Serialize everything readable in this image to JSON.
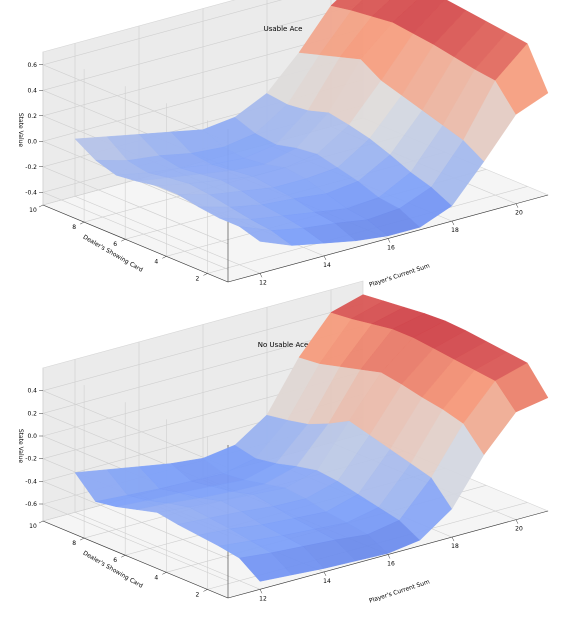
{
  "chart_data": [
    {
      "type": "surface3d",
      "title": "Usable Ace",
      "xlabel": "Player's Current Sum",
      "ylabel": "Dealer's Showing Card",
      "zlabel": "State Value",
      "xlim": [
        11,
        21
      ],
      "ylim": [
        1,
        10
      ],
      "zlim": [
        -0.5,
        0.7
      ],
      "xticks": [
        12,
        14,
        16,
        18,
        20
      ],
      "yticks": [
        2,
        4,
        6,
        8,
        10
      ],
      "zticks": [
        -0.4,
        -0.2,
        0.0,
        0.2,
        0.4,
        0.6
      ],
      "zlabels": [
        "-0.4",
        "-0.2",
        "0.0",
        "0.2",
        "0.4",
        "0.6"
      ],
      "x": [
        12,
        13,
        14,
        15,
        16,
        17,
        18,
        19,
        20,
        21
      ],
      "y": [
        1,
        2,
        3,
        4,
        5,
        6,
        7,
        8,
        9,
        10
      ],
      "z": [
        [
          -0.25,
          -0.35,
          -0.4,
          -0.45,
          -0.48,
          -0.48,
          -0.38,
          -0.1,
          0.2,
          0.3
        ],
        [
          -0.2,
          -0.3,
          -0.35,
          -0.38,
          -0.42,
          -0.4,
          -0.3,
          0.0,
          0.4,
          0.62
        ],
        [
          -0.2,
          -0.28,
          -0.32,
          -0.36,
          -0.4,
          -0.38,
          -0.25,
          0.05,
          0.42,
          0.64
        ],
        [
          -0.18,
          -0.25,
          -0.3,
          -0.32,
          -0.35,
          -0.32,
          -0.18,
          0.1,
          0.45,
          0.66
        ],
        [
          -0.15,
          -0.22,
          -0.26,
          -0.3,
          -0.3,
          -0.28,
          -0.12,
          0.15,
          0.48,
          0.68
        ],
        [
          -0.15,
          -0.2,
          -0.24,
          -0.28,
          -0.28,
          -0.24,
          -0.08,
          0.2,
          0.5,
          0.7
        ],
        [
          -0.18,
          -0.22,
          -0.26,
          -0.3,
          -0.32,
          -0.26,
          -0.05,
          0.3,
          0.52,
          0.68
        ],
        [
          -0.2,
          -0.25,
          -0.28,
          -0.32,
          -0.34,
          -0.3,
          -0.1,
          0.25,
          0.5,
          0.66
        ],
        [
          -0.15,
          -0.22,
          -0.25,
          -0.3,
          -0.32,
          -0.28,
          -0.12,
          0.2,
          0.48,
          0.65
        ],
        [
          -0.05,
          -0.1,
          -0.15,
          -0.2,
          -0.25,
          -0.22,
          -0.1,
          0.15,
          0.45,
          0.62
        ]
      ]
    },
    {
      "type": "surface3d",
      "title": "No Usable Ace",
      "xlabel": "Player's Current Sum",
      "ylabel": "Dealer's Showing Card",
      "zlabel": "State Value",
      "xlim": [
        11,
        21
      ],
      "ylim": [
        1,
        10
      ],
      "zlim": [
        -0.75,
        0.6
      ],
      "xticks": [
        12,
        14,
        16,
        18,
        20
      ],
      "yticks": [
        2,
        4,
        6,
        8,
        10
      ],
      "zticks": [
        -0.6,
        -0.4,
        -0.2,
        0.0,
        0.2,
        0.4
      ],
      "zlabels": [
        "-0.6",
        "-0.4",
        "-0.2",
        "0.0",
        "0.2",
        "0.4"
      ],
      "x": [
        12,
        13,
        14,
        15,
        16,
        17,
        18,
        19,
        20,
        21
      ],
      "y": [
        1,
        2,
        3,
        4,
        5,
        6,
        7,
        8,
        9,
        10
      ],
      "z": [
        [
          -0.68,
          -0.7,
          -0.72,
          -0.73,
          -0.74,
          -0.7,
          -0.5,
          -0.1,
          0.2,
          0.25
        ],
        [
          -0.55,
          -0.58,
          -0.6,
          -0.62,
          -0.65,
          -0.6,
          -0.3,
          0.1,
          0.4,
          0.48
        ],
        [
          -0.52,
          -0.55,
          -0.58,
          -0.6,
          -0.62,
          -0.56,
          -0.25,
          0.15,
          0.42,
          0.5
        ],
        [
          -0.5,
          -0.52,
          -0.56,
          -0.58,
          -0.6,
          -0.52,
          -0.2,
          0.18,
          0.44,
          0.52
        ],
        [
          -0.48,
          -0.5,
          -0.52,
          -0.55,
          -0.56,
          -0.48,
          -0.15,
          0.22,
          0.46,
          0.54
        ],
        [
          -0.45,
          -0.48,
          -0.5,
          -0.52,
          -0.54,
          -0.46,
          -0.1,
          0.25,
          0.48,
          0.55
        ],
        [
          -0.5,
          -0.52,
          -0.55,
          -0.57,
          -0.58,
          -0.5,
          -0.2,
          0.2,
          0.48,
          0.54
        ],
        [
          -0.55,
          -0.57,
          -0.58,
          -0.6,
          -0.62,
          -0.55,
          -0.28,
          0.15,
          0.45,
          0.52
        ],
        [
          -0.58,
          -0.6,
          -0.62,
          -0.63,
          -0.64,
          -0.58,
          -0.32,
          0.1,
          0.42,
          0.5
        ],
        [
          -0.4,
          -0.45,
          -0.5,
          -0.55,
          -0.58,
          -0.54,
          -0.35,
          0.08,
          0.4,
          0.48
        ]
      ]
    }
  ]
}
